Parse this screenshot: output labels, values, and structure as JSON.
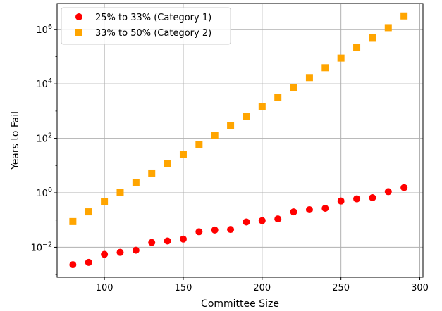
{
  "chart_data": {
    "type": "scatter",
    "xlabel": "Committee Size",
    "ylabel": "Years to Fail",
    "xlim": [
      70,
      302
    ],
    "ylim_log10": [
      -3.1,
      6.95
    ],
    "y_scale": "log",
    "grid": true,
    "legend_position": "top-left",
    "x_ticks": [
      {
        "value": 100,
        "label": "100"
      },
      {
        "value": 150,
        "label": "150"
      },
      {
        "value": 200,
        "label": "200"
      },
      {
        "value": 250,
        "label": "250"
      },
      {
        "value": 300,
        "label": "300"
      }
    ],
    "y_ticks": [
      {
        "exp": -2,
        "base": "10",
        "power": "−2"
      },
      {
        "exp": 0,
        "base": "10",
        "power": "0"
      },
      {
        "exp": 2,
        "base": "10",
        "power": "2"
      },
      {
        "exp": 4,
        "base": "10",
        "power": "4"
      },
      {
        "exp": 6,
        "base": "10",
        "power": "6"
      }
    ],
    "x": [
      80,
      90,
      100,
      110,
      120,
      130,
      140,
      150,
      160,
      170,
      180,
      190,
      200,
      210,
      220,
      230,
      240,
      250,
      260,
      270,
      280,
      290
    ],
    "series": [
      {
        "name": "25% to 33% (Category 1)",
        "marker": "circle",
        "color": "#ff0000",
        "values": [
          0.0023,
          0.0028,
          0.0055,
          0.0065,
          0.0078,
          0.015,
          0.017,
          0.02,
          0.037,
          0.043,
          0.045,
          0.085,
          0.095,
          0.11,
          0.2,
          0.24,
          0.27,
          0.5,
          0.6,
          0.66,
          1.1,
          1.55
        ]
      },
      {
        "name": "33% to 50% (Category 2)",
        "marker": "square",
        "color": "#ffa500",
        "values": [
          0.088,
          0.2,
          0.48,
          1.05,
          2.4,
          5.3,
          11.5,
          26,
          58,
          130,
          290,
          650,
          1420,
          3250,
          7400,
          17000,
          39000,
          88000,
          210000,
          500000,
          1150000,
          3100000
        ]
      }
    ]
  }
}
